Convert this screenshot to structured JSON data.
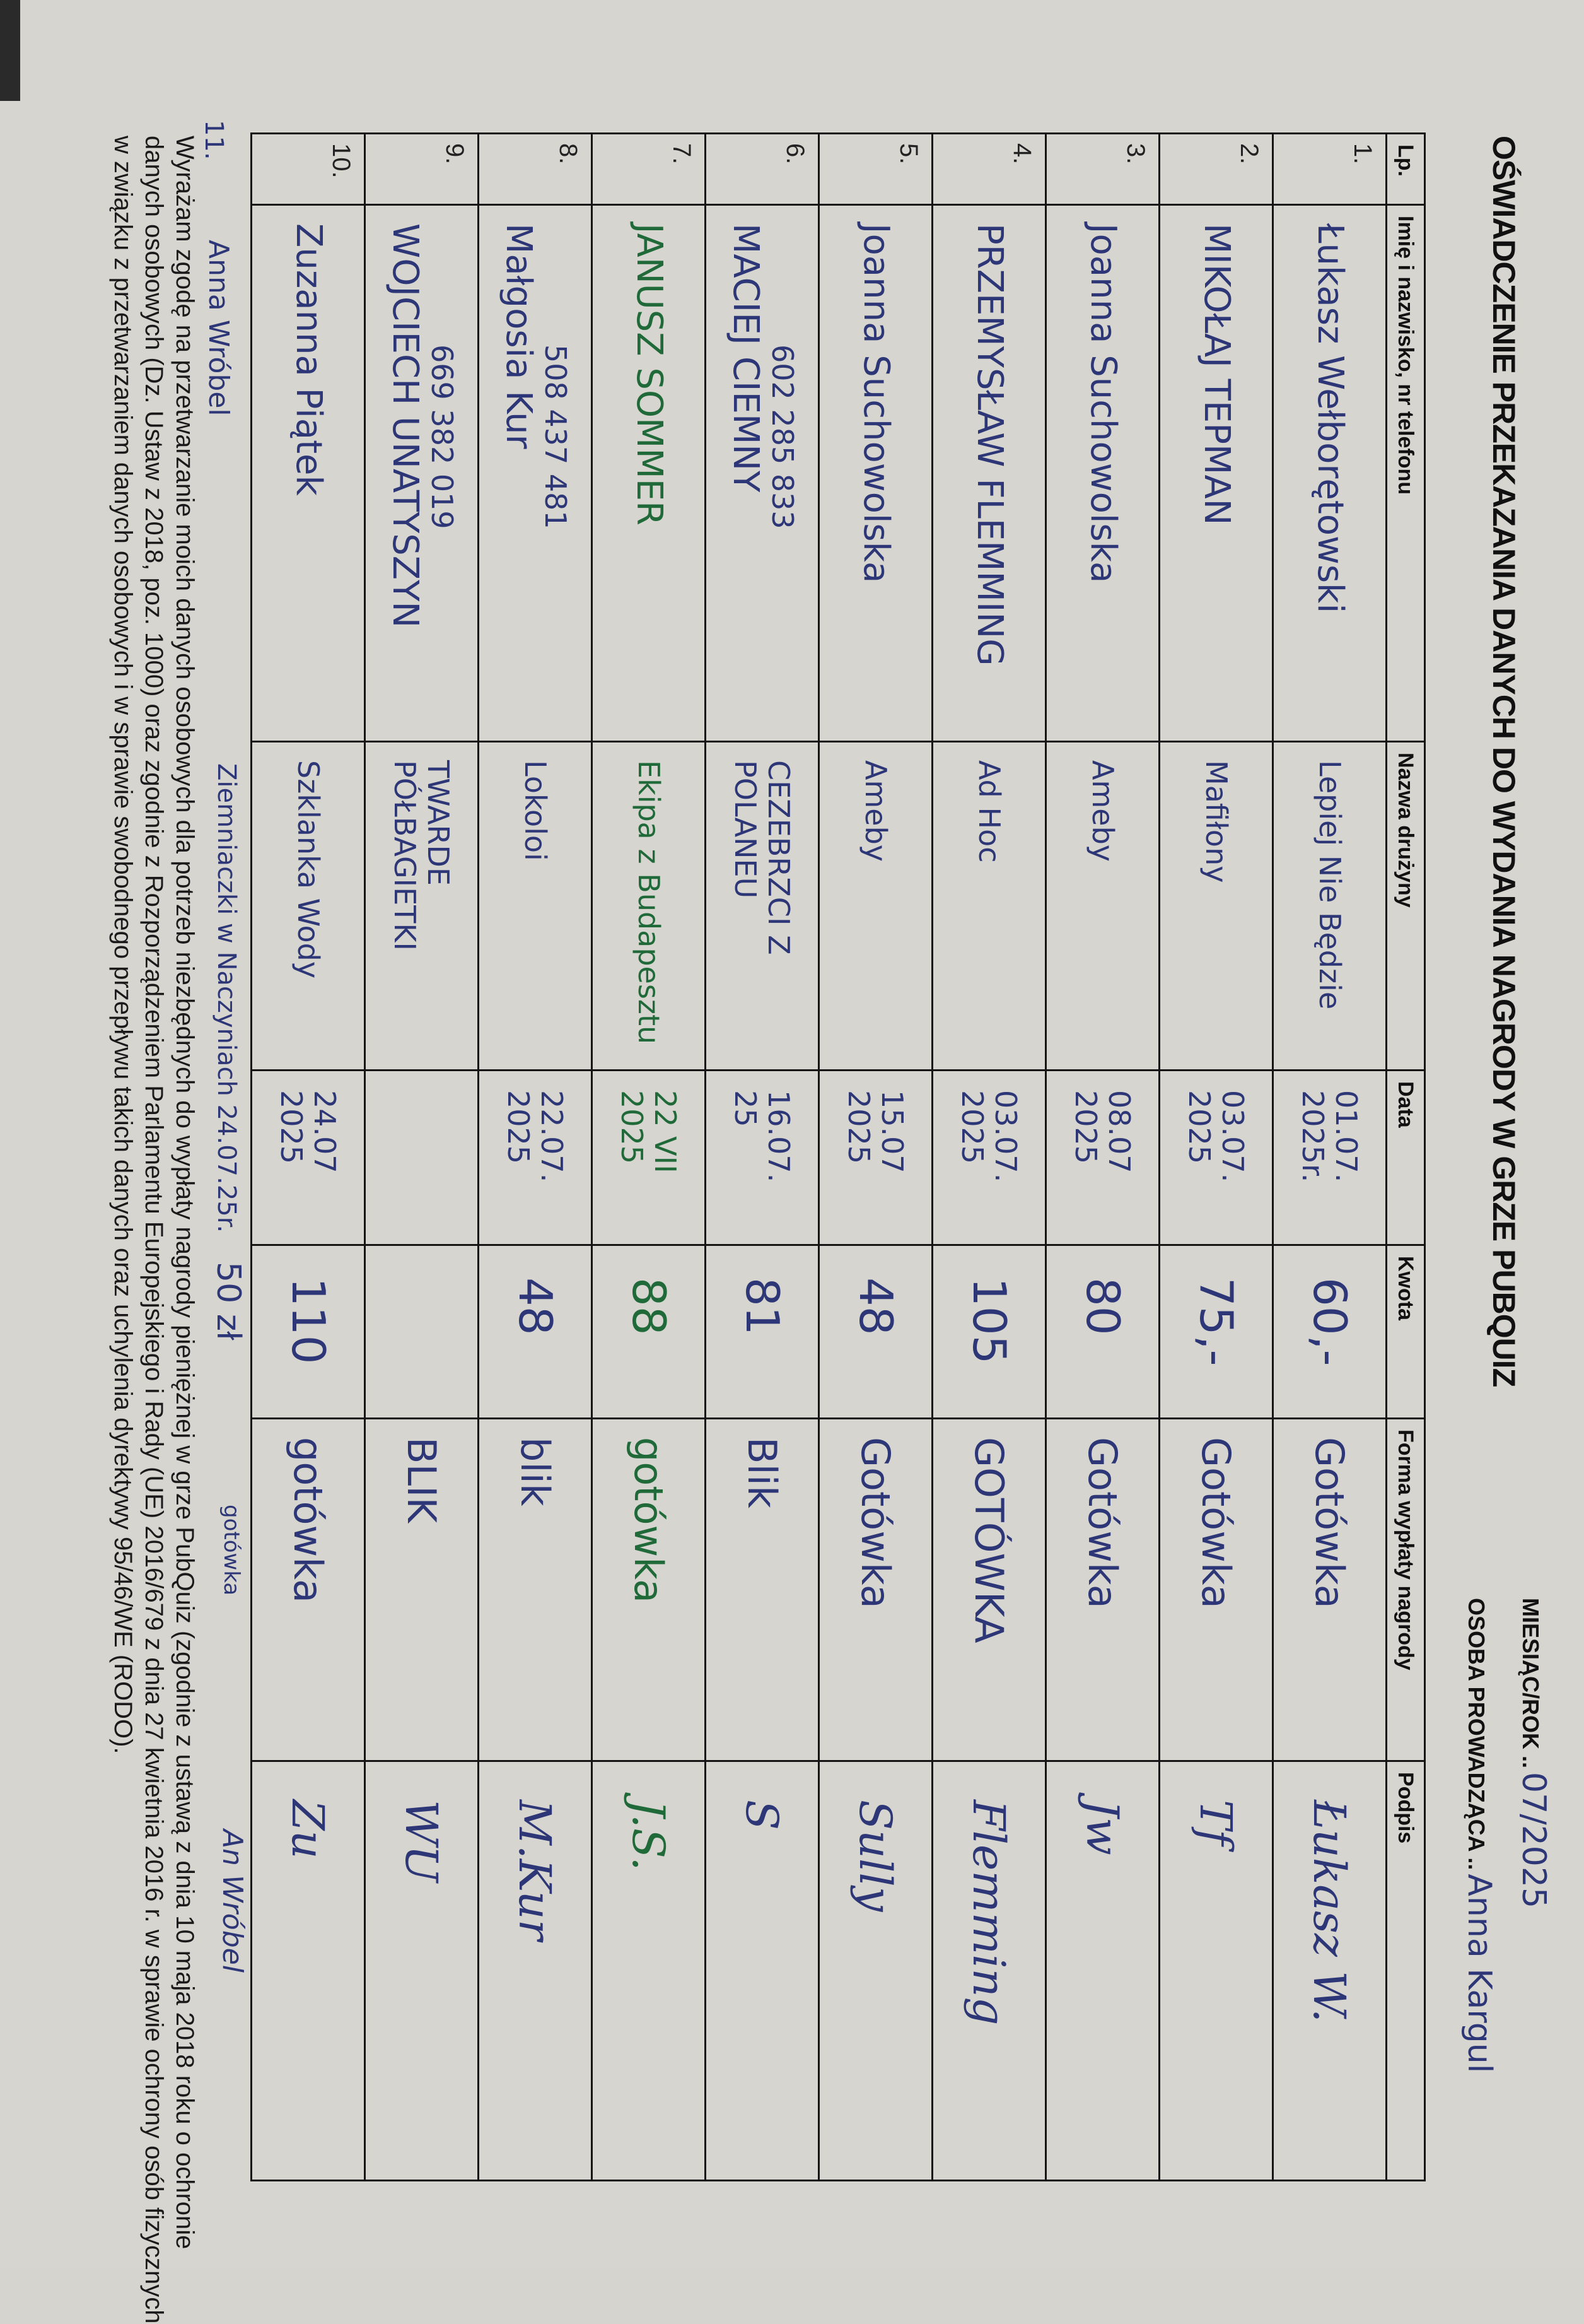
{
  "document": {
    "title": "OŚWIADCZENIE PRZEKAZANIA DANYCH DO WYDANIA NAGRODY W GRZE PUBQUIZ",
    "month_year_label": "MIESIĄC/ROK ..",
    "month_year_value": "07/2025",
    "host_label": "OSOBA PROWADZĄCA ..",
    "host_value": "Anna Kargul"
  },
  "table": {
    "headers": [
      "Lp.",
      "Imię i nazwisko, nr telefonu",
      "Nazwa drużyny",
      "Data",
      "Kwota",
      "Forma wypłaty nagrody",
      "Podpis"
    ],
    "rows": [
      {
        "lp": "1.",
        "phone": "",
        "name": "Łukasz Wełborętowski",
        "team": "Lepiej Nie Będzie",
        "date": "01.07. 2025r.",
        "amount": "60,-",
        "payout": "Gotówka",
        "signature": "Łukasz W.",
        "ink": "blue"
      },
      {
        "lp": "2.",
        "phone": "",
        "name": "MIKOŁAJ TEPMAN",
        "team": "Mafiłony",
        "date": "03.07. 2025",
        "amount": "75,-",
        "payout": "Gotówka",
        "signature": "Tf",
        "ink": "blue"
      },
      {
        "lp": "3.",
        "phone": "",
        "name": "Joanna Suchowolska",
        "team": "Ameby",
        "date": "08.07 2025",
        "amount": "80",
        "payout": "Gotówka",
        "signature": "Jw",
        "ink": "blue"
      },
      {
        "lp": "4.",
        "phone": "",
        "name": "PRZEMYSŁAW FLEMMING",
        "team": "Ad Hoc",
        "date": "03.07. 2025",
        "amount": "105",
        "payout": "GOTÓWKA",
        "signature": "Flemming",
        "ink": "blue"
      },
      {
        "lp": "5.",
        "phone": "",
        "name": "Joanna Suchowolska",
        "team": "Ameby",
        "date": "15.07 2025",
        "amount": "48",
        "payout": "Gotówka",
        "signature": "Sully",
        "ink": "blue"
      },
      {
        "lp": "6.",
        "phone": "602 285 833",
        "name": "MACIEJ CIEMNY",
        "team": "CEZEBRZCI Z POLANEU",
        "date": "16.07. 25",
        "amount": "81",
        "payout": "Blik",
        "signature": "S",
        "ink": "blue"
      },
      {
        "lp": "7.",
        "phone": "",
        "name": "JANUSZ SOMMER",
        "team": "Ekipa z Budapesztu",
        "date": "22 VII 2025",
        "amount": "88",
        "payout": "gotówka",
        "signature": "J.S.",
        "ink": "green"
      },
      {
        "lp": "8.",
        "phone": "508 437 481",
        "name": "Małgosia Kur",
        "team": "Lokoloi",
        "date": "22.07. 2025",
        "amount": "48",
        "payout": "blik",
        "signature": "M.Kur",
        "ink": "blue"
      },
      {
        "lp": "9.",
        "phone": "669 382 019",
        "name": "WOJCIECH UNATYSZYN",
        "team": "TWARDE PÓŁBAGIETKI",
        "date": "",
        "amount": "",
        "payout": "BLIK",
        "signature": "WU",
        "ink": "blue"
      },
      {
        "lp": "10.",
        "phone": "",
        "name": "Zuzanna Piątek",
        "team": "Szklanka Wody",
        "date": "24.07 2025",
        "amount": "110",
        "payout": "gotówka",
        "signature": "Zu",
        "ink": "blue"
      }
    ]
  },
  "extra_entry": {
    "lp": "11.",
    "name": "Anna Wróbel",
    "team_date": "Ziemniaczki w Naczyniach 24.07.25r.",
    "amount": "50 zł",
    "payout": "gotówka",
    "signature": "An Wróbel"
  },
  "consent": {
    "lines": [
      "Wyrażam zgodę na przetwarzanie moich danych osobowych dla potrzeb niezbędnych do wypłaty nagrody pieniężnej w grze PubQuiz (zgodnie z ustawą z dnia 10 maja 2018 roku o ochronie",
      "danych osobowych (Dz. Ustaw z 2018, poz. 1000) oraz zgodnie z Rozporządzeniem Parlamentu Europejskiego i Rady (UE) 2016/679 z dnia 27 kwietnia 2016 r. w sprawie ochrony osób fizycznych",
      "w związku z przetwarzaniem danych osobowych i w sprawie swobodnego przepływu takich danych oraz uchylenia dyrektywy 95/46/WE (RODO)."
    ]
  },
  "colors": {
    "paper": "#d6d5cf",
    "ink_blue": "#2d3676",
    "ink_green": "#1f6a38",
    "print": "#111111"
  }
}
